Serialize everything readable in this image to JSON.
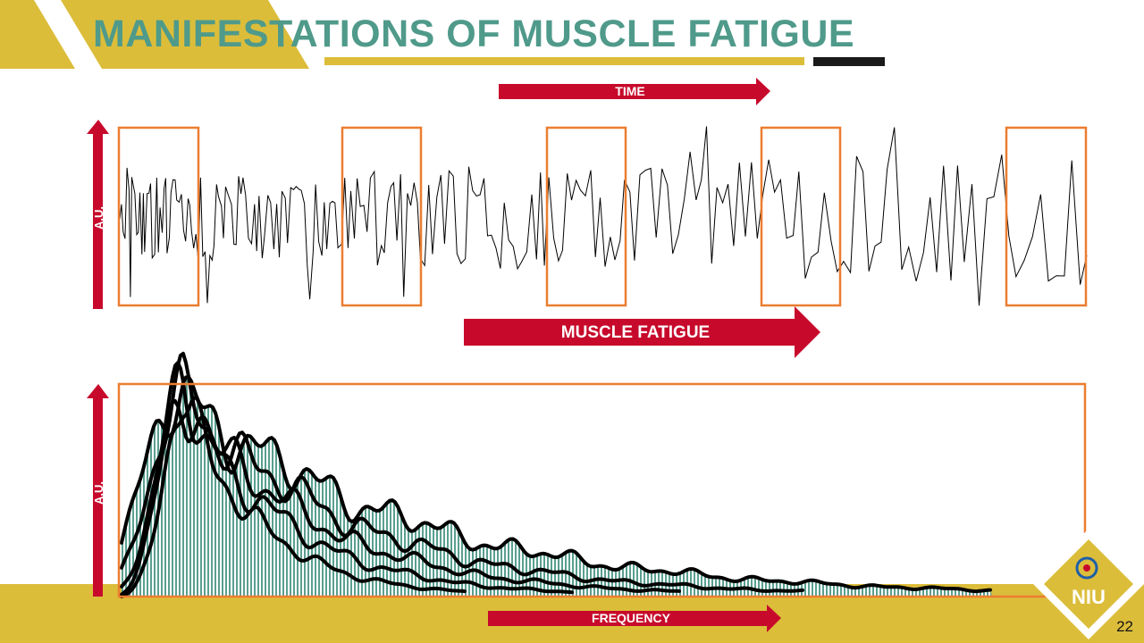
{
  "slide": {
    "title": "MANIFESTATIONS OF MUSCLE FATIGUE",
    "number": "22"
  },
  "labels": {
    "time": "TIME",
    "muscle_fatigue": "MUSCLE FATIGUE",
    "frequency": "FREQUENCY",
    "au_top": "A.U.",
    "au_bottom": "A.U."
  },
  "logo": {
    "text": "NIU",
    "icon": "university-logo-icon"
  },
  "colors": {
    "accent_yellow": "#dcbd3a",
    "title_teal": "#4f9a8a",
    "arrow_red": "#c70a2b",
    "box_orange": "#ec7d30",
    "spectrum_fill": "#4f9a8a"
  }
}
